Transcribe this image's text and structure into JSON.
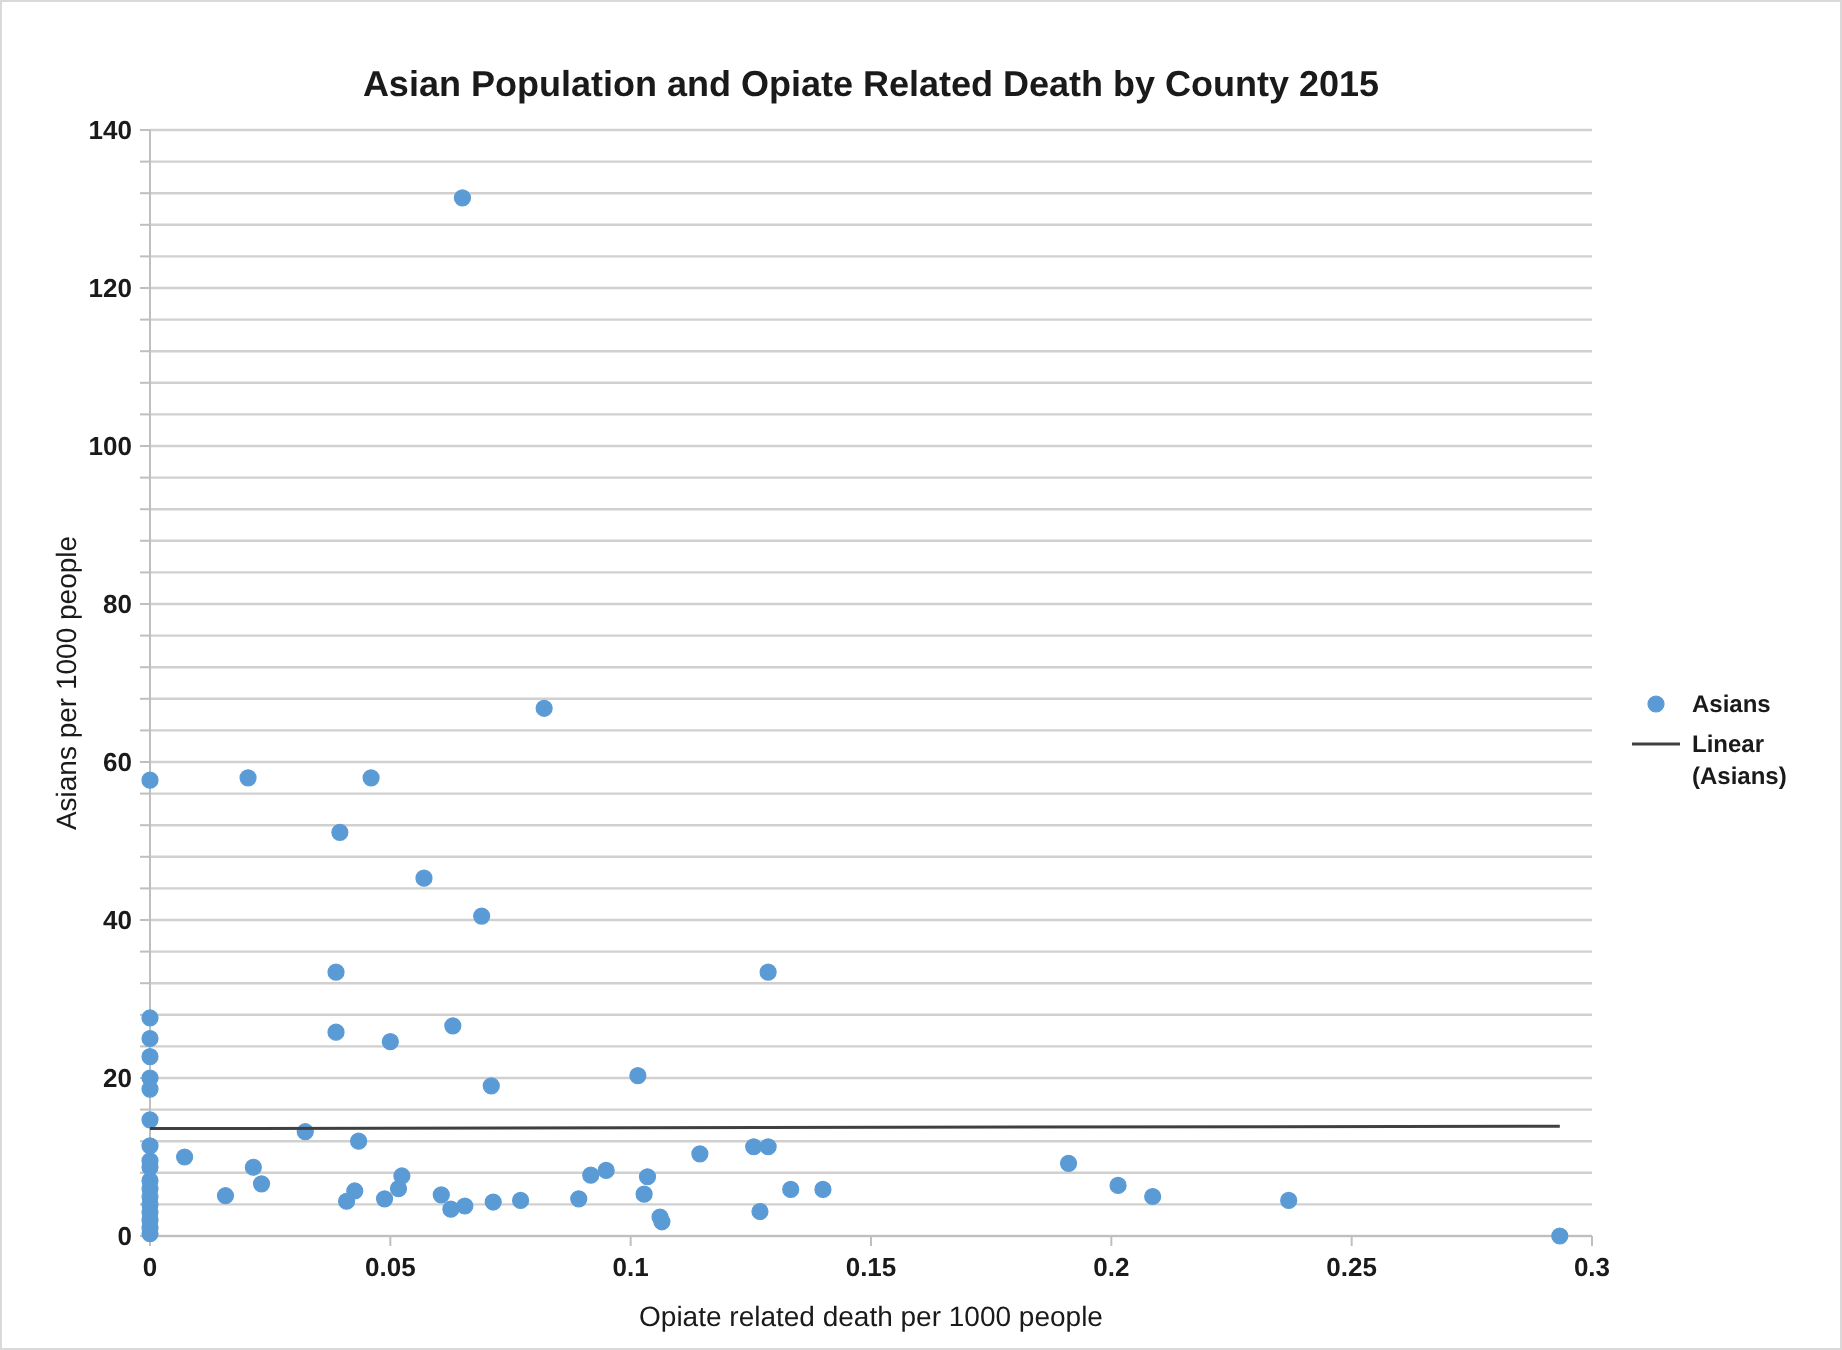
{
  "chart_data": {
    "type": "scatter",
    "title": "Asian Population and Opiate Related Death by County 2015",
    "xlabel": "Opiate related death per 1000 people",
    "ylabel": "Asians per 1000 people",
    "xlim": [
      0,
      0.3
    ],
    "xticks": [
      0,
      0.05,
      0.1,
      0.15,
      0.2,
      0.25,
      0.3
    ],
    "ylim": [
      0,
      140
    ],
    "yticks": [
      0,
      {
        "value": 4,
        "label": null
      },
      {
        "value": 8,
        "label": null
      },
      {
        "value": 12,
        "label": null
      },
      {
        "value": 16,
        "label": null
      },
      20,
      {
        "value": 24,
        "label": null
      },
      {
        "value": 28,
        "label": null
      },
      {
        "value": 32,
        "label": null
      },
      {
        "value": 36,
        "label": null
      },
      40,
      {
        "value": 44,
        "label": null
      },
      {
        "value": 48,
        "label": null
      },
      {
        "value": 52,
        "label": null
      },
      {
        "value": 56,
        "label": null
      },
      60,
      {
        "value": 64,
        "label": null
      },
      {
        "value": 68,
        "label": null
      },
      {
        "value": 72,
        "label": null
      },
      {
        "value": 76,
        "label": null
      },
      80,
      {
        "value": 84,
        "label": null
      },
      {
        "value": 88,
        "label": null
      },
      {
        "value": 92,
        "label": null
      },
      {
        "value": 96,
        "label": null
      },
      100,
      {
        "value": 104,
        "label": null
      },
      {
        "value": 108,
        "label": null
      },
      {
        "value": 112,
        "label": null
      },
      {
        "value": 116,
        "label": null
      },
      120,
      {
        "value": 124,
        "label": null
      },
      {
        "value": 128,
        "label": null
      },
      {
        "value": 132,
        "label": null
      },
      {
        "value": 136,
        "label": null
      },
      140
    ],
    "grid": "y",
    "legend": "right",
    "marker": "circle",
    "series": [
      {
        "name": "Asians",
        "color": "#5b9bd5",
        "x": [
          0.065,
          0.082,
          0,
          0.0204,
          0.046,
          0.0395,
          0.057,
          0.069,
          0.1286,
          0.0387,
          0.0387,
          0.05,
          0.063,
          0.071,
          0.1015,
          0,
          0,
          0,
          0,
          0,
          0,
          0,
          0,
          0,
          0,
          0,
          0,
          0,
          0,
          0,
          0,
          0,
          0.0323,
          0.0434,
          0.0072,
          0.0215,
          0.0232,
          0.0157,
          0.0409,
          0.0426,
          0.0488,
          0.0517,
          0.0524,
          0.0606,
          0.0626,
          0.0655,
          0.0714,
          0.0771,
          0.0892,
          0.0917,
          0.0949,
          0.1035,
          0.1028,
          0.1061,
          0.1065,
          0.1144,
          0.1256,
          0.1286,
          0.1333,
          0.14,
          0.1269,
          0.1911,
          0.2014,
          0.2086,
          0.2369,
          0.2933
        ],
        "values": [
          131.4,
          66.8,
          57.7,
          58,
          58,
          51.1,
          45.3,
          40.5,
          33.4,
          33.4,
          25.8,
          24.6,
          26.6,
          19,
          20.3,
          27.6,
          25,
          22.7,
          20,
          18.6,
          14.7,
          11.4,
          9.5,
          8.7,
          7,
          6,
          5,
          4,
          3,
          2,
          1,
          0.3,
          13.2,
          12,
          10,
          8.7,
          6.6,
          5.1,
          4.4,
          5.7,
          4.7,
          6,
          7.6,
          5.2,
          3.4,
          3.8,
          4.3,
          4.5,
          4.7,
          7.7,
          8.3,
          7.5,
          5.3,
          2.4,
          1.8,
          10.4,
          11.3,
          11.3,
          5.9,
          5.9,
          3.1,
          9.2,
          6.4,
          5,
          4.5,
          0
        ]
      },
      {
        "name": "Linear (Asians)",
        "type": "line",
        "color": "#404040",
        "marker": "none",
        "line_style": "solid",
        "x": [
          0,
          0.2933
        ],
        "values": [
          13.6,
          13.9
        ]
      }
    ]
  }
}
